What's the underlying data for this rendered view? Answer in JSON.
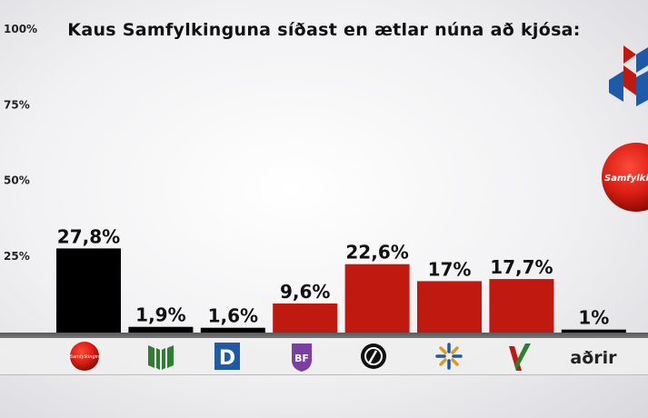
{
  "chart_data": {
    "type": "bar",
    "title": "Kaus Samfylkinguna síðast en ætlar núna að kjósa:",
    "xlabel": "",
    "ylabel": "",
    "ylim": [
      0,
      100
    ],
    "y_ticks": [
      "25%",
      "50%",
      "75%",
      "100%"
    ],
    "y_tick_values": [
      25,
      50,
      75,
      100
    ],
    "grid": false,
    "categories": [
      "samfylkingin-logo",
      "vg-logo",
      "sjalfstaedisflokkur-logo",
      "bjort-framtid-logo",
      "piratar-logo",
      "framsokn-logo",
      "vidreisn-logo",
      "aðrir"
    ],
    "values": [
      27.8,
      1.9,
      1.6,
      9.6,
      22.6,
      17,
      17.7,
      1
    ],
    "value_labels": [
      "27,8%",
      "1,9%",
      "1,6%",
      "9,6%",
      "22,6%",
      "17%",
      "17,7%",
      "1%"
    ],
    "bar_colors": [
      "#000000",
      "#000000",
      "#000000",
      "#c0190f",
      "#c0190f",
      "#c0190f",
      "#c0190f",
      "#000000"
    ]
  },
  "side_logo_text": "Samfylkingin",
  "colors": {
    "accent_red": "#c0190f",
    "baseline_band": "#666666",
    "logo_blue": "#1e5aa8",
    "logo_green": "#2e7d32",
    "logo_purple": "#7b3fa0"
  }
}
